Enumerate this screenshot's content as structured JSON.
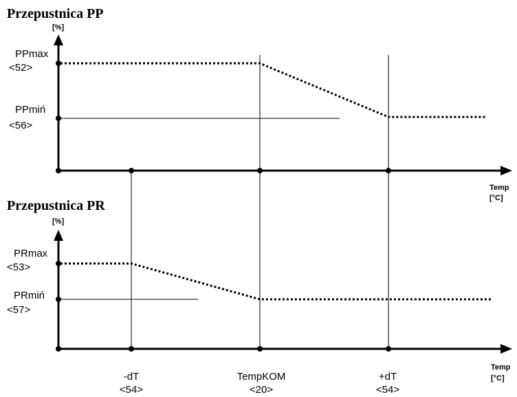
{
  "top": {
    "title": "Przepustnica PP",
    "unit": "[%]",
    "max_label": "PPmax",
    "max_code": "<52>",
    "min_label": "PPmiń",
    "min_code": "<56>",
    "x_label_1": "Temp",
    "x_label_2": "[°C]"
  },
  "bottom": {
    "title": "Przepustnica PR",
    "unit": "[%]",
    "max_label": "PRmax",
    "max_code": "<53>",
    "min_label": "PRmiń",
    "min_code": "<57>",
    "x_label_1": "Temp",
    "x_label_2": "[°C]"
  },
  "x_ticks": [
    {
      "name": "-dT",
      "code": "<54>"
    },
    {
      "name": "TempKOM",
      "code": "<20>"
    },
    {
      "name": "+dT",
      "code": "<54>"
    }
  ]
}
